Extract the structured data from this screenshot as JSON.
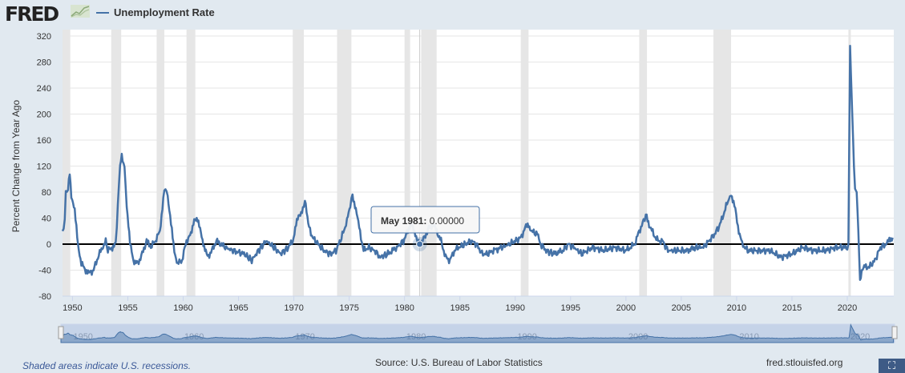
{
  "header": {
    "logo": "FRED",
    "legend": "Unemployment Rate"
  },
  "tooltip": {
    "date": "May 1981:",
    "value": "0.00000"
  },
  "footer": {
    "recession_note": "Shaded areas indicate U.S. recessions.",
    "source": "Source: U.S. Bureau of Labor Statistics",
    "site": "fred.stlouisfed.org"
  },
  "colors": {
    "series": "#4572a7",
    "recession": "#e6e6e6",
    "background": "#e1e9f0",
    "zero_line": "#000000"
  },
  "chart_data": {
    "type": "line",
    "title": "Unemployment Rate",
    "ylabel": "Percent Change from Year Ago",
    "xlabel": "",
    "xlim": [
      1949.1,
      2024.2
    ],
    "ylim": [
      -80,
      320
    ],
    "yticks": [
      -80,
      -40,
      0,
      40,
      80,
      120,
      160,
      200,
      240,
      280,
      320
    ],
    "xticks": [
      1950,
      1955,
      1960,
      1965,
      1970,
      1975,
      1980,
      1985,
      1990,
      1995,
      2000,
      2005,
      2010,
      2015,
      2020
    ],
    "nav_ticks": [
      1950,
      1960,
      1970,
      1980,
      1990,
      2000,
      2010,
      2020
    ],
    "grid": true,
    "recessions": [
      [
        1948.9,
        1949.8
      ],
      [
        1953.5,
        1954.4
      ],
      [
        1957.6,
        1958.3
      ],
      [
        1960.3,
        1961.1
      ],
      [
        1969.9,
        1970.9
      ],
      [
        1973.9,
        1975.2
      ],
      [
        1980.0,
        1980.5
      ],
      [
        1981.5,
        1982.9
      ],
      [
        1990.5,
        1991.2
      ],
      [
        2001.2,
        2001.9
      ],
      [
        2007.9,
        2009.5
      ],
      [
        2020.1,
        2020.3
      ]
    ],
    "series": [
      {
        "name": "Unemployment Rate",
        "points": [
          [
            1949.1,
            20
          ],
          [
            1949.3,
            35
          ],
          [
            1949.4,
            80
          ],
          [
            1949.6,
            85
          ],
          [
            1949.75,
            112
          ],
          [
            1949.9,
            75
          ],
          [
            1950.2,
            50
          ],
          [
            1950.5,
            0
          ],
          [
            1950.8,
            -30
          ],
          [
            1951.2,
            -40
          ],
          [
            1951.5,
            -45
          ],
          [
            1951.9,
            -40
          ],
          [
            1952.3,
            -20
          ],
          [
            1952.7,
            -5
          ],
          [
            1953.0,
            5
          ],
          [
            1953.2,
            -10
          ],
          [
            1953.6,
            -5
          ],
          [
            1953.9,
            0
          ],
          [
            1954.1,
            60
          ],
          [
            1954.3,
            120
          ],
          [
            1954.45,
            134
          ],
          [
            1954.7,
            120
          ],
          [
            1954.9,
            60
          ],
          [
            1955.2,
            0
          ],
          [
            1955.5,
            -25
          ],
          [
            1955.9,
            -30
          ],
          [
            1956.3,
            -15
          ],
          [
            1956.7,
            5
          ],
          [
            1957.0,
            -5
          ],
          [
            1957.5,
            5
          ],
          [
            1957.9,
            20
          ],
          [
            1958.2,
            70
          ],
          [
            1958.4,
            88
          ],
          [
            1958.6,
            75
          ],
          [
            1958.9,
            30
          ],
          [
            1959.2,
            -10
          ],
          [
            1959.5,
            -30
          ],
          [
            1959.9,
            -25
          ],
          [
            1960.3,
            5
          ],
          [
            1960.7,
            15
          ],
          [
            1961.0,
            40
          ],
          [
            1961.3,
            35
          ],
          [
            1961.6,
            20
          ],
          [
            1961.9,
            -5
          ],
          [
            1962.2,
            -20
          ],
          [
            1962.6,
            -10
          ],
          [
            1963.0,
            5
          ],
          [
            1963.4,
            0
          ],
          [
            1963.8,
            -5
          ],
          [
            1964.5,
            -10
          ],
          [
            1965.5,
            -15
          ],
          [
            1966.2,
            -25
          ],
          [
            1966.8,
            -10
          ],
          [
            1967.5,
            5
          ],
          [
            1968.2,
            -5
          ],
          [
            1968.8,
            -15
          ],
          [
            1969.5,
            -5
          ],
          [
            1969.9,
            5
          ],
          [
            1970.2,
            30
          ],
          [
            1970.5,
            45
          ],
          [
            1970.9,
            55
          ],
          [
            1971.0,
            72
          ],
          [
            1971.3,
            30
          ],
          [
            1971.7,
            10
          ],
          [
            1972.2,
            0
          ],
          [
            1972.7,
            -10
          ],
          [
            1973.3,
            -15
          ],
          [
            1973.8,
            -10
          ],
          [
            1974.3,
            10
          ],
          [
            1974.8,
            35
          ],
          [
            1975.1,
            60
          ],
          [
            1975.3,
            75
          ],
          [
            1975.6,
            55
          ],
          [
            1975.9,
            25
          ],
          [
            1976.3,
            -10
          ],
          [
            1976.7,
            -5
          ],
          [
            1977.3,
            -10
          ],
          [
            1977.8,
            -20
          ],
          [
            1978.5,
            -15
          ],
          [
            1979.3,
            -5
          ],
          [
            1979.9,
            5
          ],
          [
            1980.3,
            20
          ],
          [
            1980.6,
            35
          ],
          [
            1980.9,
            15
          ],
          [
            1981.2,
            5
          ],
          [
            1981.4,
            0
          ],
          [
            1981.8,
            10
          ],
          [
            1982.2,
            25
          ],
          [
            1982.6,
            30
          ],
          [
            1982.9,
            20
          ],
          [
            1983.3,
            5
          ],
          [
            1983.7,
            -20
          ],
          [
            1984.1,
            -25
          ],
          [
            1984.5,
            -10
          ],
          [
            1984.9,
            -5
          ],
          [
            1985.5,
            0
          ],
          [
            1986,
            5
          ],
          [
            1986.5,
            0
          ],
          [
            1987,
            -15
          ],
          [
            1987.5,
            -15
          ],
          [
            1988,
            -10
          ],
          [
            1988.8,
            -5
          ],
          [
            1989.5,
            0
          ],
          [
            1990,
            5
          ],
          [
            1990.5,
            10
          ],
          [
            1990.9,
            25
          ],
          [
            1991.2,
            30
          ],
          [
            1991.5,
            20
          ],
          [
            1992,
            15
          ],
          [
            1992.3,
            0
          ],
          [
            1992.8,
            -10
          ],
          [
            1993.5,
            -15
          ],
          [
            1994.3,
            -10
          ],
          [
            1994.8,
            0
          ],
          [
            1995.3,
            -5
          ],
          [
            1996,
            -15
          ],
          [
            1997,
            -5
          ],
          [
            1998,
            -10
          ],
          [
            1999,
            -5
          ],
          [
            2000,
            -10
          ],
          [
            2000.8,
            0
          ],
          [
            2001.2,
            20
          ],
          [
            2001.6,
            35
          ],
          [
            2001.8,
            45
          ],
          [
            2002.1,
            30
          ],
          [
            2002.5,
            15
          ],
          [
            2002.9,
            5
          ],
          [
            2003.3,
            5
          ],
          [
            2003.8,
            -10
          ],
          [
            2004.5,
            -10
          ],
          [
            2005.5,
            -10
          ],
          [
            2006.3,
            -5
          ],
          [
            2007,
            -5
          ],
          [
            2007.5,
            5
          ],
          [
            2008,
            15
          ],
          [
            2008.5,
            30
          ],
          [
            2008.9,
            50
          ],
          [
            2009.3,
            70
          ],
          [
            2009.5,
            78
          ],
          [
            2009.8,
            60
          ],
          [
            2010.2,
            20
          ],
          [
            2010.5,
            0
          ],
          [
            2011,
            -10
          ],
          [
            2012,
            -10
          ],
          [
            2013,
            -10
          ],
          [
            2014,
            -20
          ],
          [
            2015,
            -15
          ],
          [
            2016,
            -5
          ],
          [
            2017,
            -10
          ],
          [
            2018,
            -10
          ],
          [
            2019,
            -5
          ],
          [
            2020.0,
            -5
          ],
          [
            2020.1,
            0
          ],
          [
            2020.25,
            305
          ],
          [
            2020.33,
            260
          ],
          [
            2020.45,
            200
          ],
          [
            2020.6,
            120
          ],
          [
            2020.7,
            85
          ],
          [
            2020.85,
            80
          ],
          [
            2021.0,
            20
          ],
          [
            2021.15,
            -55
          ],
          [
            2021.3,
            -40
          ],
          [
            2021.6,
            -35
          ],
          [
            2022,
            -35
          ],
          [
            2022.5,
            -25
          ],
          [
            2023,
            -5
          ],
          [
            2023.5,
            0
          ],
          [
            2023.8,
            5
          ],
          [
            2024.1,
            10
          ]
        ]
      }
    ],
    "highlight": {
      "x": 1981.37,
      "y": 0
    }
  }
}
